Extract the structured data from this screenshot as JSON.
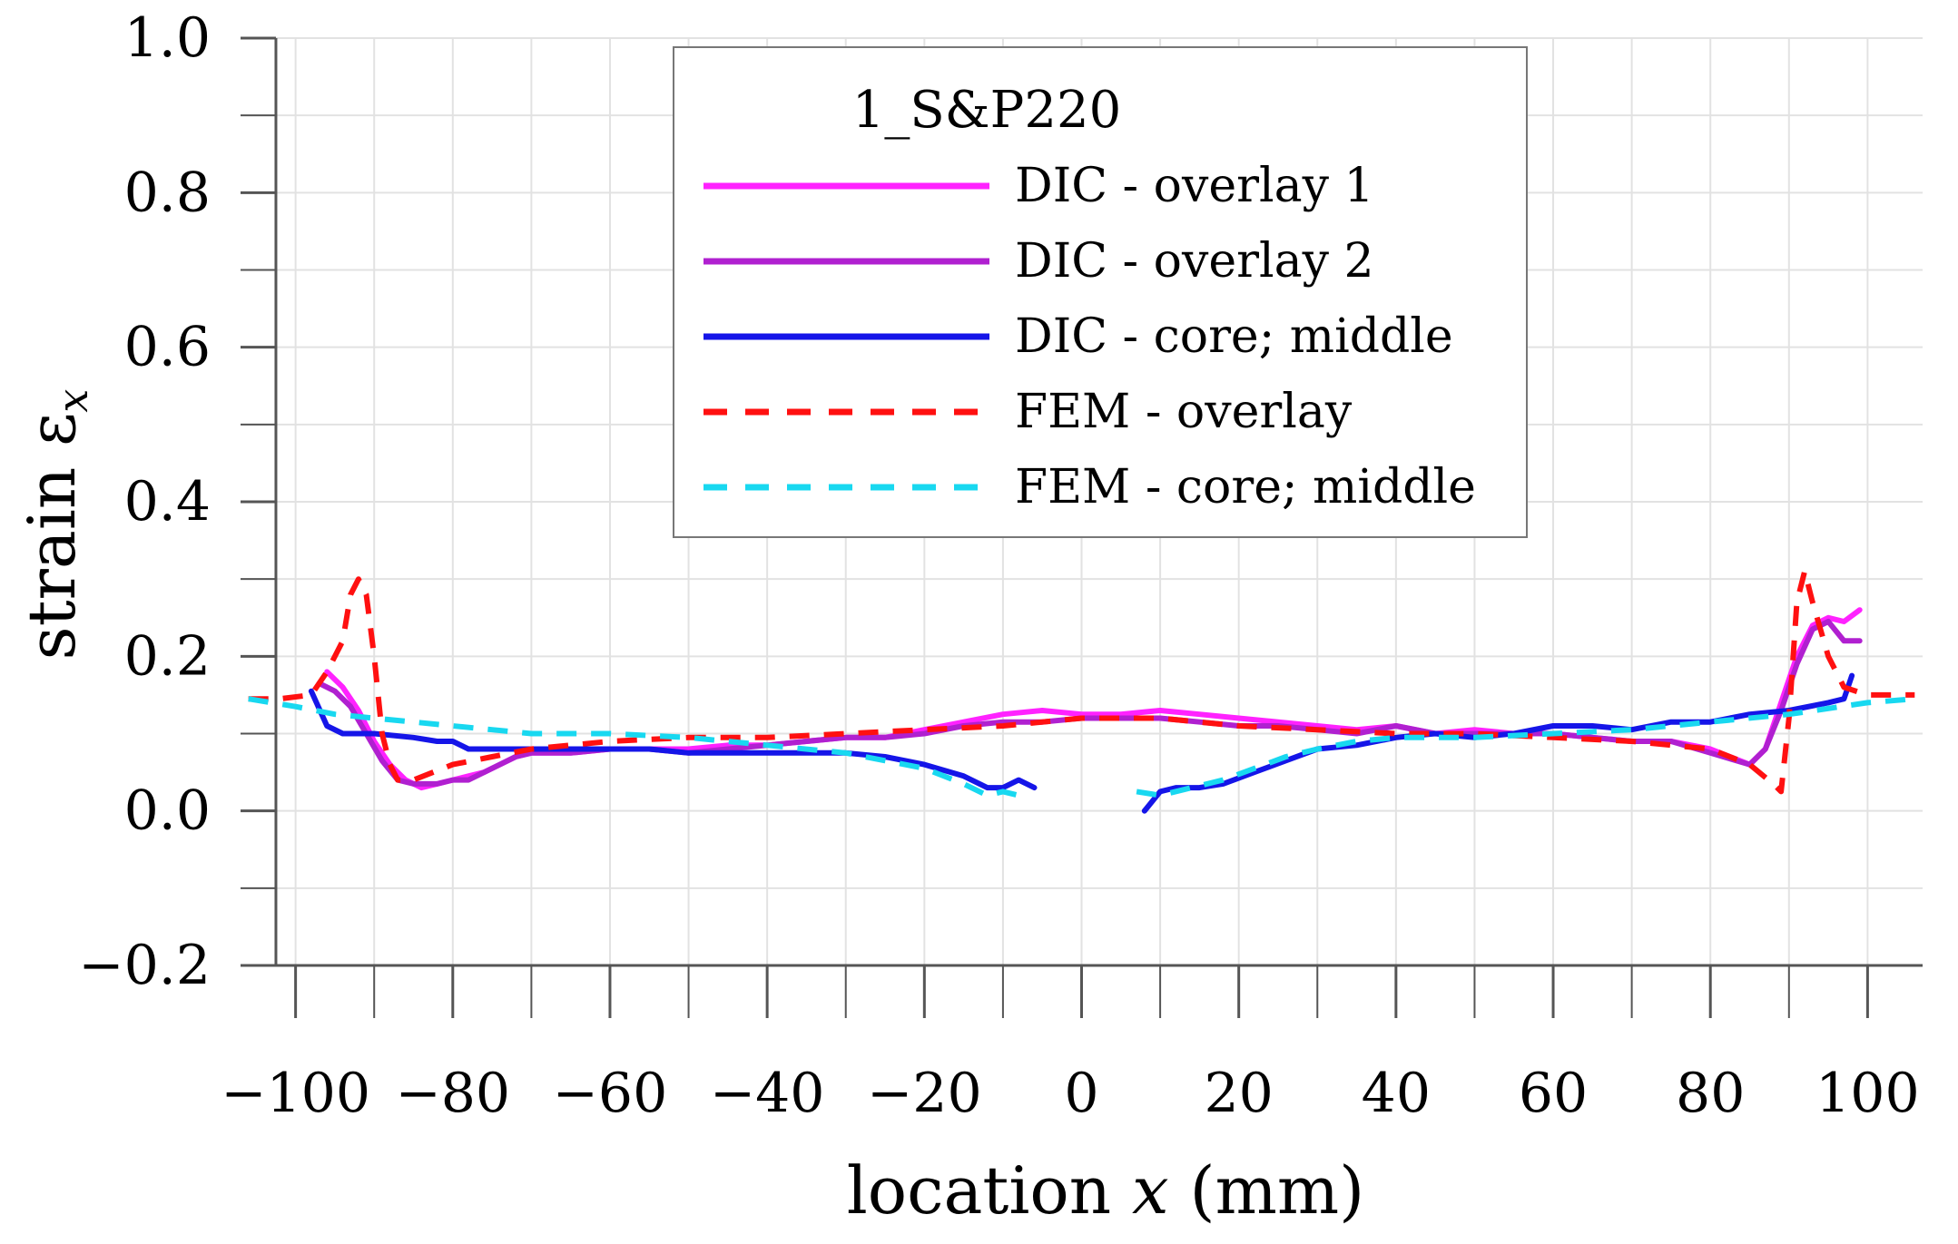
{
  "chart_data": {
    "type": "line",
    "xlabel": {
      "prefix": "location ",
      "var": "x",
      "suffix": " (mm)"
    },
    "ylabel": {
      "prefix": "strain ε",
      "sub": "x"
    },
    "xlim": [
      -107,
      107
    ],
    "ylim": [
      -0.2,
      1.0
    ],
    "x_ticks": [
      -100,
      -80,
      -60,
      -40,
      -20,
      0,
      20,
      40,
      60,
      80,
      100
    ],
    "x_tick_labels": [
      "−100",
      "−80",
      "−60",
      "−40",
      "−20",
      "0",
      "20",
      "40",
      "60",
      "80",
      "100"
    ],
    "y_ticks": [
      -0.2,
      0.0,
      0.2,
      0.4,
      0.6,
      0.8,
      1.0
    ],
    "y_tick_labels": [
      "−0.2",
      "0.0",
      "0.2",
      "0.4",
      "0.6",
      "0.8",
      "1.0"
    ],
    "grid": true,
    "legend": {
      "title": "1_S&P220",
      "placement": "top-center"
    },
    "series": [
      {
        "name": "DIC - overlay 1",
        "color": "#ff22ff",
        "dash": "solid",
        "segments": [
          [
            [
              -96,
              0.18
            ],
            [
              -94,
              0.16
            ],
            [
              -92,
              0.13
            ],
            [
              -90,
              0.09
            ],
            [
              -88,
              0.06
            ],
            [
              -86,
              0.04
            ],
            [
              -84,
              0.03
            ],
            [
              -82,
              0.035
            ],
            [
              -80,
              0.04
            ],
            [
              -78,
              0.045
            ],
            [
              -76,
              0.05
            ],
            [
              -74,
              0.06
            ],
            [
              -72,
              0.07
            ],
            [
              -70,
              0.075
            ],
            [
              -65,
              0.075
            ],
            [
              -60,
              0.08
            ],
            [
              -55,
              0.08
            ],
            [
              -50,
              0.08
            ],
            [
              -45,
              0.085
            ],
            [
              -40,
              0.085
            ],
            [
              -35,
              0.09
            ],
            [
              -30,
              0.095
            ],
            [
              -25,
              0.095
            ],
            [
              -20,
              0.105
            ],
            [
              -15,
              0.115
            ],
            [
              -10,
              0.125
            ],
            [
              -5,
              0.13
            ],
            [
              0,
              0.125
            ],
            [
              5,
              0.125
            ],
            [
              10,
              0.13
            ],
            [
              15,
              0.125
            ],
            [
              20,
              0.12
            ],
            [
              25,
              0.115
            ],
            [
              30,
              0.11
            ],
            [
              35,
              0.105
            ],
            [
              40,
              0.11
            ],
            [
              45,
              0.1
            ],
            [
              50,
              0.105
            ],
            [
              55,
              0.1
            ],
            [
              60,
              0.1
            ],
            [
              65,
              0.095
            ],
            [
              70,
              0.09
            ],
            [
              75,
              0.09
            ],
            [
              80,
              0.08
            ],
            [
              85,
              0.06
            ],
            [
              87,
              0.08
            ],
            [
              89,
              0.14
            ],
            [
              91,
              0.2
            ],
            [
              93,
              0.24
            ],
            [
              95,
              0.25
            ],
            [
              97,
              0.245
            ],
            [
              99,
              0.26
            ]
          ]
        ]
      },
      {
        "name": "DIC - overlay 2",
        "color": "#b020d0",
        "dash": "solid",
        "segments": [
          [
            [
              -97,
              0.165
            ],
            [
              -95,
              0.155
            ],
            [
              -93,
              0.135
            ],
            [
              -91,
              0.1
            ],
            [
              -89,
              0.065
            ],
            [
              -87,
              0.04
            ],
            [
              -85,
              0.035
            ],
            [
              -82,
              0.035
            ],
            [
              -80,
              0.04
            ],
            [
              -78,
              0.04
            ],
            [
              -76,
              0.05
            ],
            [
              -74,
              0.06
            ],
            [
              -72,
              0.07
            ],
            [
              -70,
              0.075
            ],
            [
              -65,
              0.075
            ],
            [
              -60,
              0.08
            ],
            [
              -55,
              0.08
            ],
            [
              -50,
              0.075
            ],
            [
              -45,
              0.08
            ],
            [
              -40,
              0.085
            ],
            [
              -35,
              0.09
            ],
            [
              -30,
              0.095
            ],
            [
              -25,
              0.095
            ],
            [
              -20,
              0.1
            ],
            [
              -15,
              0.11
            ],
            [
              -10,
              0.115
            ],
            [
              -5,
              0.115
            ],
            [
              0,
              0.12
            ],
            [
              5,
              0.12
            ],
            [
              10,
              0.12
            ],
            [
              15,
              0.115
            ],
            [
              20,
              0.11
            ],
            [
              25,
              0.11
            ],
            [
              30,
              0.105
            ],
            [
              35,
              0.1
            ],
            [
              40,
              0.11
            ],
            [
              45,
              0.1
            ],
            [
              50,
              0.1
            ],
            [
              55,
              0.1
            ],
            [
              60,
              0.1
            ],
            [
              65,
              0.095
            ],
            [
              70,
              0.09
            ],
            [
              75,
              0.09
            ],
            [
              80,
              0.075
            ],
            [
              85,
              0.06
            ],
            [
              87,
              0.08
            ],
            [
              89,
              0.13
            ],
            [
              91,
              0.19
            ],
            [
              93,
              0.235
            ],
            [
              95,
              0.245
            ],
            [
              97,
              0.22
            ],
            [
              99,
              0.22
            ]
          ]
        ]
      },
      {
        "name": "DIC - core; middle",
        "color": "#1515e8",
        "dash": "solid",
        "segments": [
          [
            [
              -98,
              0.155
            ],
            [
              -96,
              0.11
            ],
            [
              -94,
              0.1
            ],
            [
              -90,
              0.1
            ],
            [
              -85,
              0.095
            ],
            [
              -82,
              0.09
            ],
            [
              -80,
              0.09
            ],
            [
              -78,
              0.08
            ],
            [
              -75,
              0.08
            ],
            [
              -70,
              0.08
            ],
            [
              -65,
              0.08
            ],
            [
              -60,
              0.08
            ],
            [
              -55,
              0.08
            ],
            [
              -50,
              0.075
            ],
            [
              -45,
              0.075
            ],
            [
              -40,
              0.075
            ],
            [
              -35,
              0.075
            ],
            [
              -30,
              0.075
            ],
            [
              -25,
              0.07
            ],
            [
              -20,
              0.06
            ],
            [
              -15,
              0.045
            ],
            [
              -12,
              0.03
            ],
            [
              -10,
              0.03
            ],
            [
              -8,
              0.04
            ],
            [
              -6,
              0.03
            ]
          ],
          [
            [
              8,
              0.0
            ],
            [
              10,
              0.025
            ],
            [
              12,
              0.03
            ],
            [
              15,
              0.03
            ],
            [
              18,
              0.035
            ],
            [
              22,
              0.05
            ],
            [
              26,
              0.065
            ],
            [
              30,
              0.08
            ],
            [
              35,
              0.085
            ],
            [
              40,
              0.095
            ],
            [
              45,
              0.1
            ],
            [
              50,
              0.095
            ],
            [
              55,
              0.1
            ],
            [
              60,
              0.11
            ],
            [
              65,
              0.11
            ],
            [
              70,
              0.105
            ],
            [
              75,
              0.115
            ],
            [
              80,
              0.115
            ],
            [
              85,
              0.125
            ],
            [
              90,
              0.13
            ],
            [
              95,
              0.14
            ],
            [
              97,
              0.145
            ],
            [
              98,
              0.175
            ]
          ]
        ]
      },
      {
        "name": "FEM - overlay",
        "color": "#ff1010",
        "dash": "dashed",
        "segments": [
          [
            [
              -106,
              0.145
            ],
            [
              -102,
              0.145
            ],
            [
              -98,
              0.15
            ],
            [
              -96,
              0.18
            ],
            [
              -94,
              0.22
            ],
            [
              -93,
              0.28
            ],
            [
              -92,
              0.3
            ],
            [
              -91,
              0.28
            ],
            [
              -90,
              0.2
            ],
            [
              -89,
              0.1
            ],
            [
              -88,
              0.06
            ],
            [
              -87,
              0.04
            ],
            [
              -85,
              0.04
            ],
            [
              -80,
              0.06
            ],
            [
              -75,
              0.07
            ],
            [
              -70,
              0.08
            ],
            [
              -60,
              0.09
            ],
            [
              -50,
              0.095
            ],
            [
              -40,
              0.095
            ],
            [
              -30,
              0.1
            ],
            [
              -20,
              0.105
            ],
            [
              -10,
              0.11
            ],
            [
              0,
              0.12
            ],
            [
              10,
              0.12
            ],
            [
              20,
              0.11
            ],
            [
              30,
              0.105
            ],
            [
              40,
              0.1
            ],
            [
              50,
              0.1
            ],
            [
              60,
              0.095
            ],
            [
              70,
              0.09
            ],
            [
              80,
              0.08
            ],
            [
              85,
              0.06
            ],
            [
              88,
              0.035
            ],
            [
              89,
              0.025
            ],
            [
              90,
              0.12
            ],
            [
              91,
              0.27
            ],
            [
              92,
              0.31
            ],
            [
              93,
              0.27
            ],
            [
              95,
              0.2
            ],
            [
              97,
              0.16
            ],
            [
              100,
              0.15
            ],
            [
              106,
              0.15
            ]
          ]
        ]
      },
      {
        "name": "FEM - core; middle",
        "color": "#18d8f0",
        "dash": "dashed",
        "segments": [
          [
            [
              -106,
              0.145
            ],
            [
              -100,
              0.135
            ],
            [
              -95,
              0.125
            ],
            [
              -90,
              0.12
            ],
            [
              -85,
              0.115
            ],
            [
              -80,
              0.11
            ],
            [
              -75,
              0.105
            ],
            [
              -70,
              0.1
            ],
            [
              -60,
              0.1
            ],
            [
              -50,
              0.095
            ],
            [
              -40,
              0.085
            ],
            [
              -30,
              0.075
            ],
            [
              -25,
              0.065
            ],
            [
              -20,
              0.055
            ],
            [
              -15,
              0.035
            ],
            [
              -12,
              0.02
            ],
            [
              -10,
              0.025
            ],
            [
              -8,
              0.02
            ]
          ],
          [
            [
              7,
              0.025
            ],
            [
              10,
              0.02
            ],
            [
              14,
              0.03
            ],
            [
              18,
              0.04
            ],
            [
              22,
              0.055
            ],
            [
              26,
              0.07
            ],
            [
              30,
              0.08
            ],
            [
              35,
              0.09
            ],
            [
              40,
              0.095
            ],
            [
              50,
              0.095
            ],
            [
              60,
              0.1
            ],
            [
              70,
              0.105
            ],
            [
              80,
              0.115
            ],
            [
              90,
              0.125
            ],
            [
              100,
              0.14
            ],
            [
              106,
              0.145
            ]
          ]
        ]
      }
    ]
  }
}
